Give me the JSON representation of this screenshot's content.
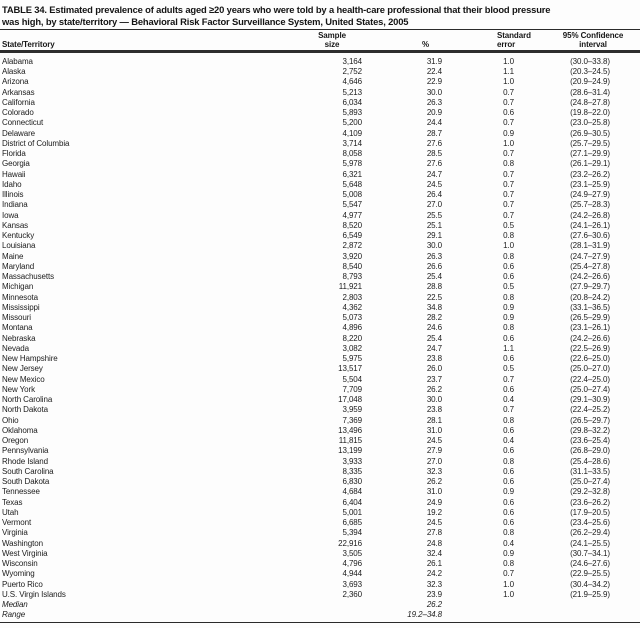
{
  "title_lines": [
    "TABLE 34. Estimated prevalence of adults aged ≥20 years who were told by a health-care professional that their blood pressure",
    "was high, by state/territory — Behavioral Risk Factor Surveillance System, United States, 2005"
  ],
  "colors": {
    "ink": "#1f1f1f",
    "rule": "#2e2e2e",
    "background": "#fdfdfd"
  },
  "table": {
    "header": {
      "state": "State/Territory",
      "sample_line1": "Sample",
      "sample_line2": "size",
      "pct": "%",
      "se_line1": "Standard",
      "se_line2": "error",
      "ci_line1": "95% Confidence",
      "ci_line2": "interval"
    },
    "rows": [
      {
        "state": "Alabama",
        "sample": "3,164",
        "pct": "31.9",
        "se": "1.0",
        "ci": "(30.0–33.8)"
      },
      {
        "state": "Alaska",
        "sample": "2,752",
        "pct": "22.4",
        "se": "1.1",
        "ci": "(20.3–24.5)"
      },
      {
        "state": "Arizona",
        "sample": "4,646",
        "pct": "22.9",
        "se": "1.0",
        "ci": "(20.9–24.9)"
      },
      {
        "state": "Arkansas",
        "sample": "5,213",
        "pct": "30.0",
        "se": "0.7",
        "ci": "(28.6–31.4)"
      },
      {
        "state": "California",
        "sample": "6,034",
        "pct": "26.3",
        "se": "0.7",
        "ci": "(24.8–27.8)"
      },
      {
        "state": "Colorado",
        "sample": "5,893",
        "pct": "20.9",
        "se": "0.6",
        "ci": "(19.8–22.0)"
      },
      {
        "state": "Connecticut",
        "sample": "5,200",
        "pct": "24.4",
        "se": "0.7",
        "ci": "(23.0–25.8)"
      },
      {
        "state": "Delaware",
        "sample": "4,109",
        "pct": "28.7",
        "se": "0.9",
        "ci": "(26.9–30.5)"
      },
      {
        "state": "District of Columbia",
        "sample": "3,714",
        "pct": "27.6",
        "se": "1.0",
        "ci": "(25.7–29.5)"
      },
      {
        "state": "Florida",
        "sample": "8,058",
        "pct": "28.5",
        "se": "0.7",
        "ci": "(27.1–29.9)"
      },
      {
        "state": "Georgia",
        "sample": "5,978",
        "pct": "27.6",
        "se": "0.8",
        "ci": "(26.1–29.1)"
      },
      {
        "state": "Hawaii",
        "sample": "6,321",
        "pct": "24.7",
        "se": "0.7",
        "ci": "(23.2–26.2)"
      },
      {
        "state": "Idaho",
        "sample": "5,648",
        "pct": "24.5",
        "se": "0.7",
        "ci": "(23.1–25.9)"
      },
      {
        "state": "Illinois",
        "sample": "5,008",
        "pct": "26.4",
        "se": "0.7",
        "ci": "(24.9–27.9)"
      },
      {
        "state": "Indiana",
        "sample": "5,547",
        "pct": "27.0",
        "se": "0.7",
        "ci": "(25.7–28.3)"
      },
      {
        "state": "Iowa",
        "sample": "4,977",
        "pct": "25.5",
        "se": "0.7",
        "ci": "(24.2–26.8)"
      },
      {
        "state": "Kansas",
        "sample": "8,520",
        "pct": "25.1",
        "se": "0.5",
        "ci": "(24.1–26.1)"
      },
      {
        "state": "Kentucky",
        "sample": "6,549",
        "pct": "29.1",
        "se": "0.8",
        "ci": "(27.6–30.6)"
      },
      {
        "state": "Louisiana",
        "sample": "2,872",
        "pct": "30.0",
        "se": "1.0",
        "ci": "(28.1–31.9)"
      },
      {
        "state": "Maine",
        "sample": "3,920",
        "pct": "26.3",
        "se": "0.8",
        "ci": "(24.7–27.9)"
      },
      {
        "state": "Maryland",
        "sample": "8,540",
        "pct": "26.6",
        "se": "0.6",
        "ci": "(25.4–27.8)"
      },
      {
        "state": "Massachusetts",
        "sample": "8,793",
        "pct": "25.4",
        "se": "0.6",
        "ci": "(24.2–26.6)"
      },
      {
        "state": "Michigan",
        "sample": "11,921",
        "pct": "28.8",
        "se": "0.5",
        "ci": "(27.9–29.7)"
      },
      {
        "state": "Minnesota",
        "sample": "2,803",
        "pct": "22.5",
        "se": "0.8",
        "ci": "(20.8–24.2)"
      },
      {
        "state": "Mississippi",
        "sample": "4,362",
        "pct": "34.8",
        "se": "0.9",
        "ci": "(33.1–36.5)"
      },
      {
        "state": "Missouri",
        "sample": "5,073",
        "pct": "28.2",
        "se": "0.9",
        "ci": "(26.5–29.9)"
      },
      {
        "state": "Montana",
        "sample": "4,896",
        "pct": "24.6",
        "se": "0.8",
        "ci": "(23.1–26.1)"
      },
      {
        "state": "Nebraska",
        "sample": "8,220",
        "pct": "25.4",
        "se": "0.6",
        "ci": "(24.2–26.6)"
      },
      {
        "state": "Nevada",
        "sample": "3,082",
        "pct": "24.7",
        "se": "1.1",
        "ci": "(22.5–26.9)"
      },
      {
        "state": "New Hampshire",
        "sample": "5,975",
        "pct": "23.8",
        "se": "0.6",
        "ci": "(22.6–25.0)"
      },
      {
        "state": "New Jersey",
        "sample": "13,517",
        "pct": "26.0",
        "se": "0.5",
        "ci": "(25.0–27.0)"
      },
      {
        "state": "New Mexico",
        "sample": "5,504",
        "pct": "23.7",
        "se": "0.7",
        "ci": "(22.4–25.0)"
      },
      {
        "state": "New York",
        "sample": "7,709",
        "pct": "26.2",
        "se": "0.6",
        "ci": "(25.0–27.4)"
      },
      {
        "state": "North Carolina",
        "sample": "17,048",
        "pct": "30.0",
        "se": "0.4",
        "ci": "(29.1–30.9)"
      },
      {
        "state": "North Dakota",
        "sample": "3,959",
        "pct": "23.8",
        "se": "0.7",
        "ci": "(22.4–25.2)"
      },
      {
        "state": "Ohio",
        "sample": "7,369",
        "pct": "28.1",
        "se": "0.8",
        "ci": "(26.5–29.7)"
      },
      {
        "state": "Oklahoma",
        "sample": "13,496",
        "pct": "31.0",
        "se": "0.6",
        "ci": "(29.8–32.2)"
      },
      {
        "state": "Oregon",
        "sample": "11,815",
        "pct": "24.5",
        "se": "0.4",
        "ci": "(23.6–25.4)"
      },
      {
        "state": "Pennsylvania",
        "sample": "13,199",
        "pct": "27.9",
        "se": "0.6",
        "ci": "(26.8–29.0)"
      },
      {
        "state": "Rhode Island",
        "sample": "3,933",
        "pct": "27.0",
        "se": "0.8",
        "ci": "(25.4–28.6)"
      },
      {
        "state": "South Carolina",
        "sample": "8,335",
        "pct": "32.3",
        "se": "0.6",
        "ci": "(31.1–33.5)"
      },
      {
        "state": "South Dakota",
        "sample": "6,830",
        "pct": "26.2",
        "se": "0.6",
        "ci": "(25.0–27.4)"
      },
      {
        "state": "Tennessee",
        "sample": "4,684",
        "pct": "31.0",
        "se": "0.9",
        "ci": "(29.2–32.8)"
      },
      {
        "state": "Texas",
        "sample": "6,404",
        "pct": "24.9",
        "se": "0.6",
        "ci": "(23.6–26.2)"
      },
      {
        "state": "Utah",
        "sample": "5,001",
        "pct": "19.2",
        "se": "0.6",
        "ci": "(17.9–20.5)"
      },
      {
        "state": "Vermont",
        "sample": "6,685",
        "pct": "24.5",
        "se": "0.6",
        "ci": "(23.4–25.6)"
      },
      {
        "state": "Virginia",
        "sample": "5,394",
        "pct": "27.8",
        "se": "0.8",
        "ci": "(26.2–29.4)"
      },
      {
        "state": "Washington",
        "sample": "22,916",
        "pct": "24.8",
        "se": "0.4",
        "ci": "(24.1–25.5)"
      },
      {
        "state": "West Virginia",
        "sample": "3,505",
        "pct": "32.4",
        "se": "0.9",
        "ci": "(30.7–34.1)"
      },
      {
        "state": "Wisconsin",
        "sample": "4,796",
        "pct": "26.1",
        "se": "0.8",
        "ci": "(24.6–27.6)"
      },
      {
        "state": "Wyoming",
        "sample": "4,944",
        "pct": "24.2",
        "se": "0.7",
        "ci": "(22.9–25.5)"
      },
      {
        "state": "Puerto Rico",
        "sample": "3,693",
        "pct": "32.3",
        "se": "1.0",
        "ci": "(30.4–34.2)"
      },
      {
        "state": "U.S. Virgin Islands",
        "sample": "2,360",
        "pct": "23.9",
        "se": "1.0",
        "ci": "(21.9–25.9)"
      },
      {
        "state": "Median",
        "sample": "",
        "pct": "26.2",
        "se": "",
        "ci": "",
        "italic": true
      },
      {
        "state": "Range",
        "sample": "",
        "pct": "19.2–34.8",
        "se": "",
        "ci": "",
        "italic": true
      }
    ]
  }
}
